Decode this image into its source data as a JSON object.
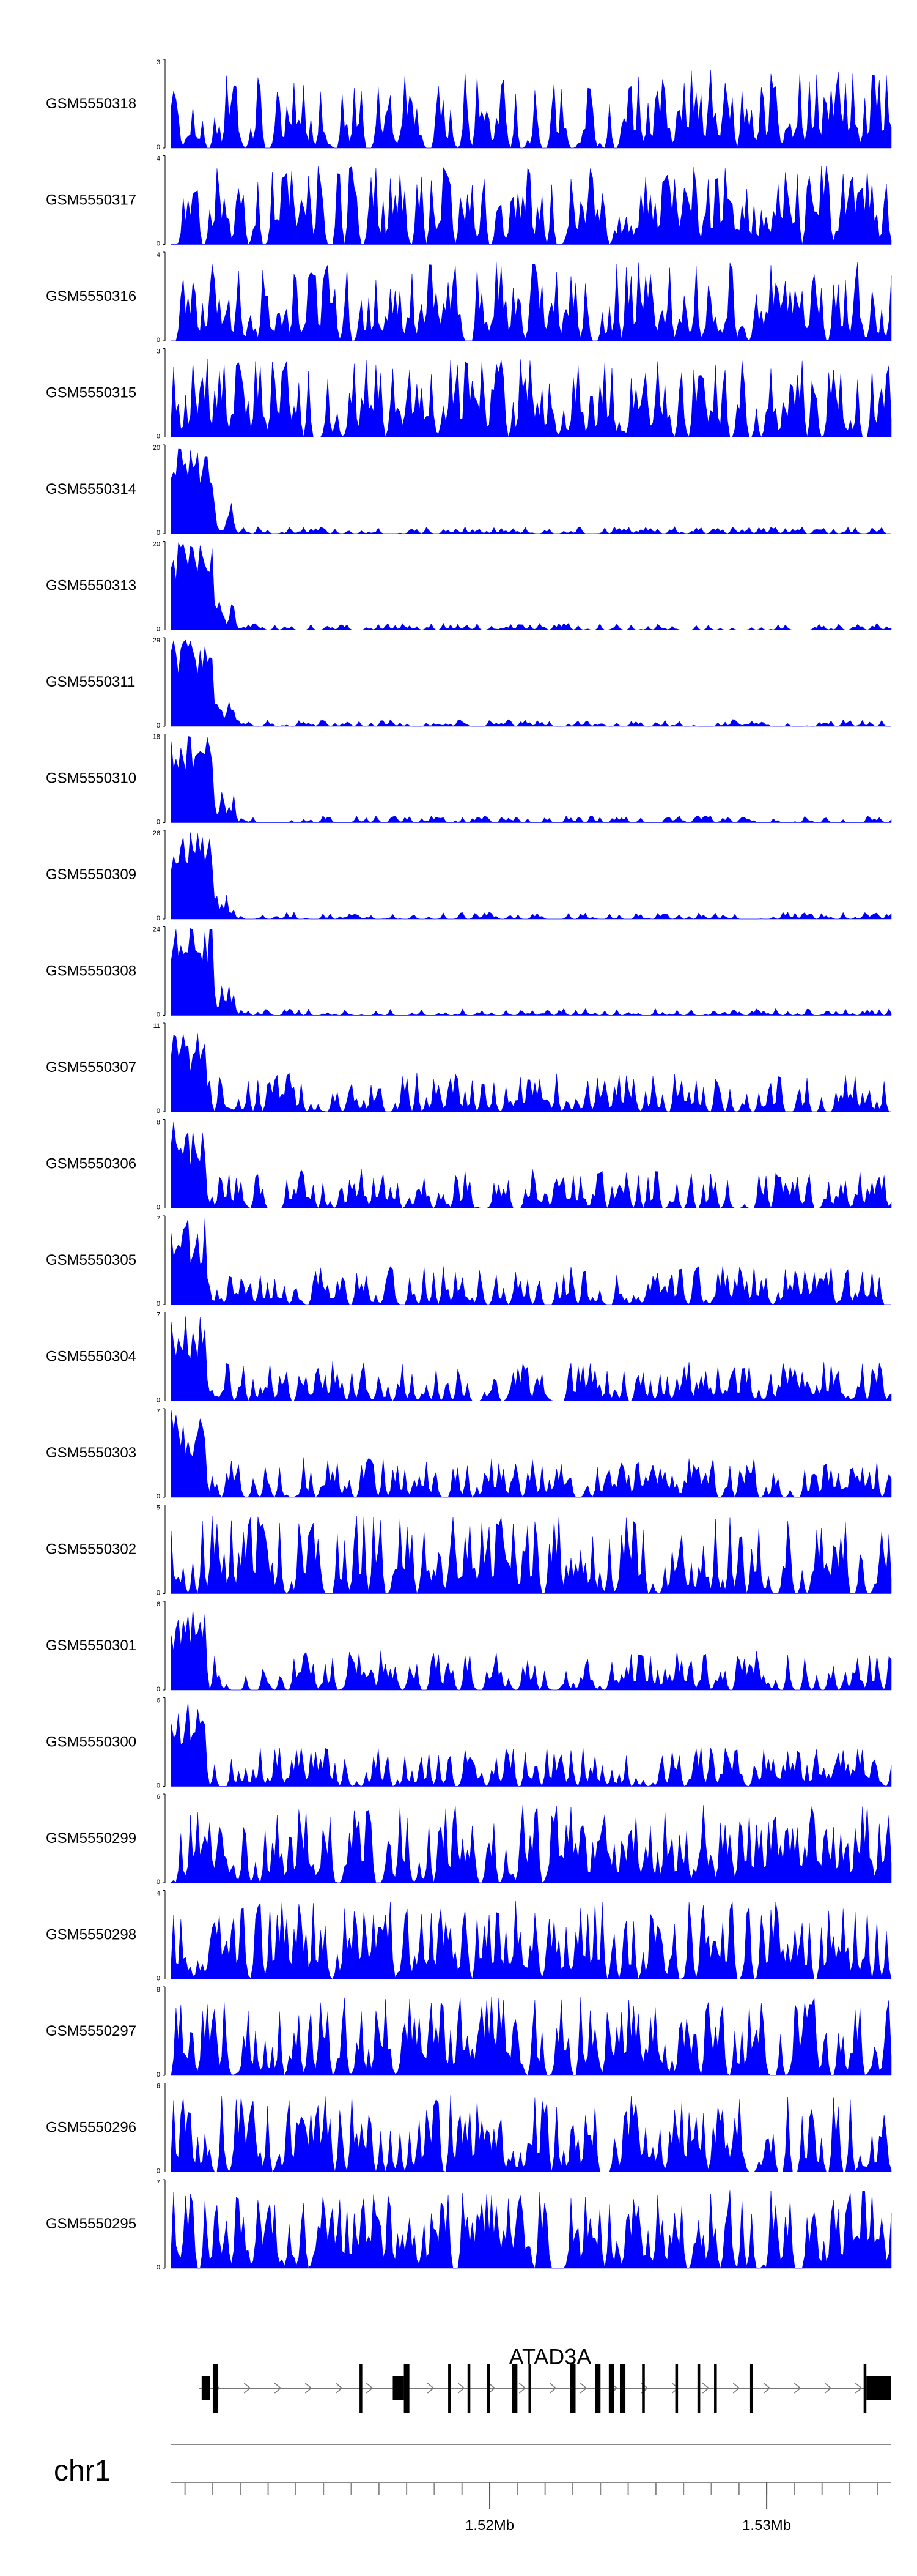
{
  "chart_data": {
    "type": "area",
    "title": "",
    "chromosome": "chr1",
    "xlim": [
      1.5085,
      1.5345
    ],
    "x_unit": "Mb",
    "fill_color": "#0000ff",
    "gene": "ATAD3A",
    "axis_ticks": [
      {
        "value": 1.52,
        "label": "1.52Mb"
      },
      {
        "value": 1.53,
        "label": "1.53Mb"
      }
    ],
    "tracks": [
      {
        "name": "GSM5550318",
        "ymax": "3",
        "ymin": "0",
        "scale": 3,
        "profile": "flat",
        "seed": 318
      },
      {
        "name": "GSM5550317",
        "ymax": "4",
        "ymin": "0",
        "scale": 4,
        "profile": "flat",
        "seed": 317
      },
      {
        "name": "GSM5550316",
        "ymax": "4",
        "ymin": "0",
        "scale": 4,
        "profile": "flat",
        "seed": 316
      },
      {
        "name": "GSM5550315",
        "ymax": "3",
        "ymin": "0",
        "scale": 3,
        "profile": "flat",
        "seed": 315
      },
      {
        "name": "GSM5550314",
        "ymax": "20",
        "ymin": "0",
        "scale": 20,
        "profile": "peak",
        "seed": 314
      },
      {
        "name": "GSM5550313",
        "ymax": "20",
        "ymin": "0",
        "scale": 20,
        "profile": "peak",
        "seed": 313
      },
      {
        "name": "GSM5550311",
        "ymax": "29",
        "ymin": "0",
        "scale": 29,
        "profile": "peak",
        "seed": 311
      },
      {
        "name": "GSM5550310",
        "ymax": "18",
        "ymin": "0",
        "scale": 18,
        "profile": "peak",
        "seed": 310
      },
      {
        "name": "GSM5550309",
        "ymax": "26",
        "ymin": "0",
        "scale": 26,
        "profile": "peak",
        "seed": 309
      },
      {
        "name": "GSM5550308",
        "ymax": "24",
        "ymin": "0",
        "scale": 24,
        "profile": "peak",
        "seed": 308
      },
      {
        "name": "GSM5550307",
        "ymax": "11",
        "ymin": "0",
        "scale": 11,
        "profile": "medium",
        "seed": 307
      },
      {
        "name": "GSM5550306",
        "ymax": "8",
        "ymin": "0",
        "scale": 8,
        "profile": "medium",
        "seed": 306
      },
      {
        "name": "GSM5550305",
        "ymax": "7",
        "ymin": "0",
        "scale": 7,
        "profile": "medium",
        "seed": 305
      },
      {
        "name": "GSM5550304",
        "ymax": "7",
        "ymin": "0",
        "scale": 7,
        "profile": "medium",
        "seed": 304
      },
      {
        "name": "GSM5550303",
        "ymax": "7",
        "ymin": "0",
        "scale": 7,
        "profile": "medium",
        "seed": 303
      },
      {
        "name": "GSM5550302",
        "ymax": "5",
        "ymin": "0",
        "scale": 5,
        "profile": "flat",
        "seed": 302
      },
      {
        "name": "GSM5550301",
        "ymax": "6",
        "ymin": "0",
        "scale": 6,
        "profile": "medium",
        "seed": 301
      },
      {
        "name": "GSM5550300",
        "ymax": "6",
        "ymin": "0",
        "scale": 6,
        "profile": "medium",
        "seed": 300
      },
      {
        "name": "GSM5550299",
        "ymax": "6",
        "ymin": "0",
        "scale": 6,
        "profile": "flat",
        "seed": 299
      },
      {
        "name": "GSM5550298",
        "ymax": "4",
        "ymin": "0",
        "scale": 4,
        "profile": "flat",
        "seed": 298
      },
      {
        "name": "GSM5550297",
        "ymax": "8",
        "ymin": "0",
        "scale": 8,
        "profile": "flat",
        "seed": 297
      },
      {
        "name": "GSM5550296",
        "ymax": "6",
        "ymin": "0",
        "scale": 6,
        "profile": "flat",
        "seed": 296
      },
      {
        "name": "GSM5550295",
        "ymax": "7",
        "ymin": "0",
        "scale": 7,
        "profile": "flat",
        "seed": 295
      }
    ],
    "gene_model": {
      "start": 1.5095,
      "end": 1.5345,
      "strand": "+",
      "exons": [
        {
          "start": 1.5096,
          "end": 1.5099,
          "thick": true
        },
        {
          "start": 1.51,
          "end": 1.5102,
          "thick": false
        },
        {
          "start": 1.5153,
          "end": 1.5154,
          "thick": false
        },
        {
          "start": 1.5165,
          "end": 1.5169,
          "thick": true
        },
        {
          "start": 1.5169,
          "end": 1.5171,
          "thick": false
        },
        {
          "start": 1.5185,
          "end": 1.5186,
          "thick": false
        },
        {
          "start": 1.5192,
          "end": 1.5193,
          "thick": false
        },
        {
          "start": 1.5199,
          "end": 1.52,
          "thick": false
        },
        {
          "start": 1.5208,
          "end": 1.521,
          "thick": false
        },
        {
          "start": 1.5214,
          "end": 1.5215,
          "thick": false
        },
        {
          "start": 1.5229,
          "end": 1.5231,
          "thick": false
        },
        {
          "start": 1.5238,
          "end": 1.524,
          "thick": false
        },
        {
          "start": 1.5243,
          "end": 1.5245,
          "thick": false
        },
        {
          "start": 1.5247,
          "end": 1.5249,
          "thick": false
        },
        {
          "start": 1.5255,
          "end": 1.5256,
          "thick": false
        },
        {
          "start": 1.5267,
          "end": 1.5268,
          "thick": false
        },
        {
          "start": 1.5275,
          "end": 1.5276,
          "thick": false
        },
        {
          "start": 1.5281,
          "end": 1.5282,
          "thick": false
        },
        {
          "start": 1.5294,
          "end": 1.5295,
          "thick": false
        },
        {
          "start": 1.5335,
          "end": 1.5336,
          "thick": false
        },
        {
          "start": 1.5336,
          "end": 1.5345,
          "thick": true
        }
      ]
    }
  }
}
